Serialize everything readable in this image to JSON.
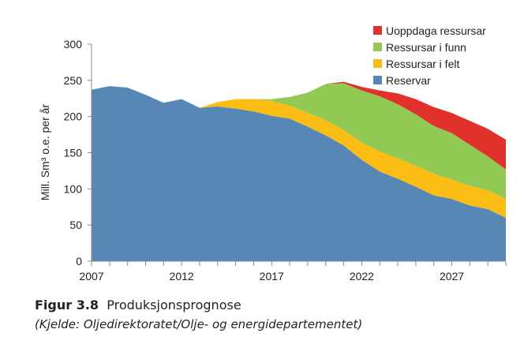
{
  "chart_data": {
    "type": "area",
    "stacked": true,
    "title": "",
    "xlabel": "",
    "ylabel": "Mill. Sm³ o.e. per år",
    "xlim": [
      2007,
      2030
    ],
    "ylim": [
      0,
      300
    ],
    "xticks": [
      2007,
      2012,
      2017,
      2022,
      2027
    ],
    "yticks": [
      0,
      50,
      100,
      150,
      200,
      250,
      300
    ],
    "grid": false,
    "legend_position": "top-right",
    "x": [
      2007,
      2008,
      2009,
      2010,
      2011,
      2012,
      2013,
      2014,
      2015,
      2016,
      2017,
      2018,
      2019,
      2020,
      2021,
      2022,
      2023,
      2024,
      2025,
      2026,
      2027,
      2028,
      2029,
      2030
    ],
    "series": [
      {
        "name": "Reservar",
        "color": "#5787b4",
        "values": [
          237,
          242,
          240,
          230,
          219,
          224,
          212,
          214,
          211,
          207,
          201,
          197,
          186,
          174,
          160,
          140,
          124,
          114,
          103,
          91,
          86,
          77,
          72,
          60
        ]
      },
      {
        "name": "Ressursar i felt",
        "color": "#fbbc13",
        "values": [
          0,
          0,
          0,
          0,
          0,
          0,
          0,
          6,
          13,
          17,
          21,
          18,
          19,
          21,
          21,
          24,
          28,
          28,
          29,
          30,
          27,
          27,
          26,
          26
        ]
      },
      {
        "name": "Ressursar i funn",
        "color": "#92c955",
        "values": [
          0,
          0,
          0,
          0,
          0,
          0,
          0,
          0,
          0,
          0,
          2,
          12,
          28,
          50,
          65,
          72,
          76,
          75,
          71,
          66,
          64,
          57,
          47,
          41
        ]
      },
      {
        "name": "Uoppdaga ressursar",
        "color": "#e0312a",
        "values": [
          0,
          0,
          0,
          0,
          0,
          0,
          0,
          0,
          0,
          0,
          0,
          0,
          0,
          0,
          2,
          5,
          8,
          15,
          21,
          26,
          28,
          33,
          38,
          41
        ]
      }
    ]
  },
  "caption": {
    "figure_label": "Figur 3.8",
    "figure_title": "Produksjonsprognose",
    "source": "(Kjelde: Oljedirektoratet/Olje- og energidepartementet)"
  }
}
